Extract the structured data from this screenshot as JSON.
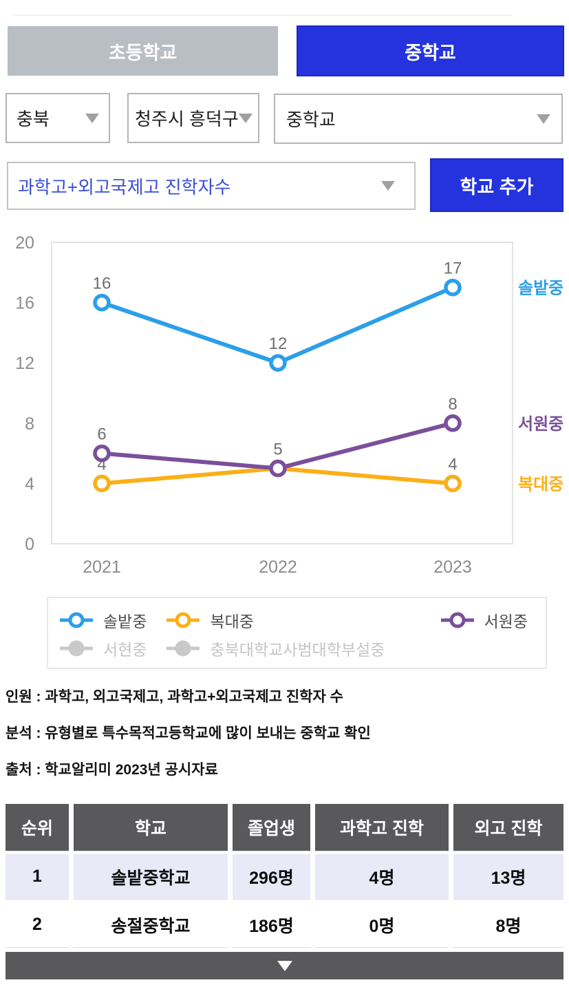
{
  "tabs": {
    "elementary": "초등학교",
    "middle": "중학교"
  },
  "filters": {
    "region": "충북",
    "district": "청주시 흥덕구",
    "school_level": "중학교",
    "metric": "과학고+외고국제고 진학자수",
    "add_school_button": "학교 추가"
  },
  "chart_data": {
    "type": "line",
    "x": [
      "2021",
      "2022",
      "2023"
    ],
    "ylim": [
      0,
      20
    ],
    "yticks": [
      0,
      4,
      8,
      12,
      16,
      20
    ],
    "grid": false,
    "legend_position": "bottom",
    "series": [
      {
        "name": "복대중",
        "color": "#fbaf17",
        "values": [
          4,
          5,
          4
        ],
        "labels": [
          "4",
          null,
          "4"
        ]
      },
      {
        "name": "서원중",
        "color": "#7a4f9b",
        "values": [
          6,
          5,
          8
        ],
        "labels": [
          "6",
          "5",
          "8"
        ]
      },
      {
        "name": "솔밭중",
        "color": "#2b9fe8",
        "values": [
          16,
          12,
          17
        ],
        "labels": [
          "16",
          "12",
          "17"
        ]
      }
    ],
    "inactive_series": [
      "서현중",
      "충북대학교사범대학부설중"
    ]
  },
  "legend": {
    "rows": [
      [
        {
          "label": "솔밭중",
          "color": "#2b9fe8",
          "active": true
        },
        {
          "label": "복대중",
          "color": "#fbaf17",
          "active": true
        },
        {
          "label": "서원중",
          "color": "#7a4f9b",
          "active": true,
          "align": "right"
        }
      ],
      [
        {
          "label": "서현중",
          "active": false
        },
        {
          "label": "충북대학교사범대학부설중",
          "active": false
        }
      ]
    ],
    "inactive_color": "#c9c9c9"
  },
  "notes": [
    "인원 : 과학고, 외고국제고, 과학고+외고국제고 진학자 수",
    "분석 : 유형별로 특수목적고등학교에 많이 보내는 중학교 확인",
    "출처 : 학교알리미 2023년 공시자료"
  ],
  "table": {
    "headers": [
      "순위",
      "학교",
      "졸업생",
      "과학고 진학",
      "외고 진학"
    ],
    "rows": [
      [
        "1",
        "솔밭중학교",
        "296명",
        "4명",
        "13명"
      ],
      [
        "2",
        "송절중학교",
        "186명",
        "0명",
        "8명"
      ]
    ],
    "expand_icon": "down-triangle"
  },
  "colors": {
    "accent_blue": "#2433de",
    "inactive_tab_gray": "#b9bdc4",
    "table_header_gray": "#59595b",
    "row_alt_lavender": "#e9e9f8",
    "axis_text": "#8c8c8c",
    "data_label": "#6e6e6e",
    "plot_border": "#e4e4e4"
  }
}
